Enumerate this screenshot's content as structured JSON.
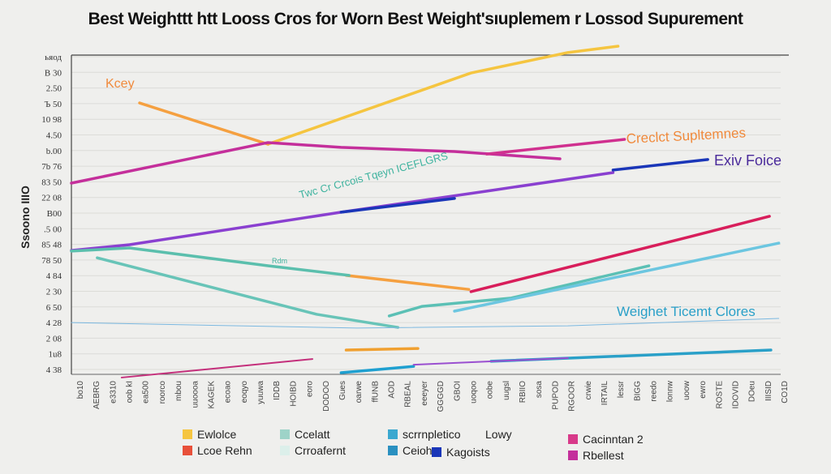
{
  "chart_data": {
    "type": "line",
    "title": "Best Weighttt htt Looss Cros for Worn Best Weight'sıuplemem r Lossod Supurement",
    "ylabel": "Ssoono IIIO",
    "xlabel": "",
    "xlim": [
      0,
      100
    ],
    "ylim": [
      0,
      100
    ],
    "grid": true,
    "legend_position": "bottom",
    "y_ticks": [
      "ьяод",
      "В 30",
      "2.50",
      "Ъ 50",
      "10 98",
      "4.50",
      "b.00",
      "7b 76",
      "83 50",
      "22 08",
      "B00",
      ".5 00",
      "85 48",
      "78 50",
      "4 84",
      "2 30",
      "6 50",
      "4 28",
      "2 08",
      "1u8",
      "4 38"
    ],
    "x_ticks": [
      "bo10",
      "AEBRG",
      "e3310",
      "oob kI",
      "ea500",
      "roorco",
      "mbou",
      "uuoooa",
      "KAGEK",
      "ecoao",
      "eoqyo",
      "yuuwa",
      "IDDB",
      "HOIBD",
      "eoro",
      "DODOO",
      "Gues",
      "oarwe",
      "ffUNB",
      "AOD",
      "RBEAL",
      "eeeyer",
      "GGGGD",
      "GBOI",
      "uoqoo",
      "oobe",
      "uugsl",
      "RBIIO",
      "sosa",
      "PUPOD",
      "RGOOR",
      "crwie",
      "IRTAIL",
      "lessr",
      "BIGG",
      "reedo",
      "lonnw",
      "uoow",
      "ewro",
      "ROSTE",
      "IDOVID",
      "DOeu",
      "IIISID",
      "CO1D"
    ],
    "series": [
      {
        "color": "#f5c540",
        "points": [
          [
            27.4,
            72.1
          ],
          [
            55.7,
            94.4
          ],
          [
            69.2,
            100.8
          ],
          [
            76.2,
            102.8
          ]
        ]
      },
      {
        "color": "#f5a040",
        "points": [
          [
            9.5,
            85.0
          ],
          [
            27.4,
            72.1
          ]
        ]
      },
      {
        "color": "#f5a040",
        "points": [
          [
            38.3,
            31.0
          ],
          [
            55.4,
            26.6
          ]
        ]
      },
      {
        "color": "#f0a030",
        "points": [
          [
            38.3,
            7.6
          ],
          [
            48.3,
            8.1
          ]
        ]
      },
      {
        "color": "#c42f9b",
        "points": [
          [
            0,
            59.9
          ],
          [
            27.4,
            72.6
          ],
          [
            37.6,
            71.1
          ],
          [
            53.4,
            69.8
          ],
          [
            68.1,
            67.5
          ]
        ]
      },
      {
        "color": "#d0308f",
        "points": [
          [
            57.9,
            69.0
          ],
          [
            77.1,
            73.6
          ]
        ]
      },
      {
        "color": "#8a40d0",
        "points": [
          [
            0,
            38.8
          ],
          [
            8.1,
            40.6
          ],
          [
            37.6,
            50.8
          ],
          [
            57.9,
            57.4
          ],
          [
            75.5,
            63.2
          ]
        ]
      },
      {
        "color": "#1a36b8",
        "points": [
          [
            37.6,
            50.8
          ],
          [
            53.4,
            55.1
          ]
        ]
      },
      {
        "color": "#1a36b8",
        "points": [
          [
            75.5,
            64.0
          ],
          [
            88.7,
            67.3
          ]
        ]
      },
      {
        "color": "#5bbfad",
        "points": [
          [
            0,
            38.6
          ],
          [
            8.1,
            39.6
          ],
          [
            27.4,
            34.0
          ],
          [
            38.7,
            31.0
          ]
        ]
      },
      {
        "color": "#68c4b8",
        "points": [
          [
            3.6,
            36.5
          ],
          [
            34.2,
            18.8
          ],
          [
            45.5,
            14.7
          ]
        ]
      },
      {
        "color": "#5bc0b5",
        "points": [
          [
            44.3,
            18.3
          ],
          [
            48.9,
            21.3
          ],
          [
            61.3,
            23.9
          ],
          [
            80.5,
            34.0
          ]
        ]
      },
      {
        "color": "#6cc6e0",
        "points": [
          [
            53.4,
            19.8
          ],
          [
            98.6,
            41.1
          ]
        ]
      },
      {
        "color": "#d81e5b",
        "points": [
          [
            55.7,
            25.9
          ],
          [
            86.2,
            43.1
          ],
          [
            97.3,
            49.5
          ]
        ]
      },
      {
        "color": "#1fa0d0",
        "points": [
          [
            37.6,
            0.5
          ],
          [
            47.7,
            2.5
          ]
        ]
      },
      {
        "color": "#2aa0c8",
        "points": [
          [
            58.5,
            4.1
          ],
          [
            97.5,
            7.6
          ]
        ]
      },
      {
        "color": "#c42f7b",
        "points": [
          [
            7.0,
            -1
          ],
          [
            33.6,
            4.8
          ]
        ]
      },
      {
        "color": "#9a4fd0",
        "points": [
          [
            47.7,
            3.0
          ],
          [
            69.2,
            5.1
          ]
        ]
      },
      {
        "color": "#7bb8e0",
        "points": [
          [
            0,
            16.2
          ],
          [
            39.8,
            14.5
          ],
          [
            69.2,
            15.2
          ],
          [
            98.6,
            17.5
          ]
        ]
      }
    ],
    "annotations": [
      {
        "text": "Kcey",
        "color": "#f08a3c"
      },
      {
        "text": "Creclct Supltemnes",
        "color": "#f08a3c"
      },
      {
        "text": "Exiv Foice",
        "color": "#4a2a9a"
      },
      {
        "text": "Weighet Ticemt Clores",
        "color": "#2aa0c8"
      },
      {
        "text": "Twc Cr Crcois Tqeyn ICEFLGRS",
        "color": "#3fb39f"
      },
      {
        "text": "Rdm",
        "color": "#3fb39f"
      }
    ],
    "legend": [
      {
        "label": "Ewlolce",
        "color": "#f5c540"
      },
      {
        "label": "Lcoe Rehn",
        "color": "#e8503a"
      },
      {
        "label": "Ccelatt",
        "color": "#9ed3c8"
      },
      {
        "label": "Crroafernt",
        "color": "#dcefea"
      },
      {
        "label": "scrrnpletico",
        "color": "#3aa8d0"
      },
      {
        "label": "Lowy",
        "color": ""
      },
      {
        "label": "Ceiohrc",
        "color": "#2a90c0"
      },
      {
        "label": "Kagoists",
        "color": "#1a36b8"
      },
      {
        "label": "Cacinntan 2",
        "color": "#d83a8a"
      },
      {
        "label": "Rbellest",
        "color": "#c42f9b"
      }
    ]
  }
}
